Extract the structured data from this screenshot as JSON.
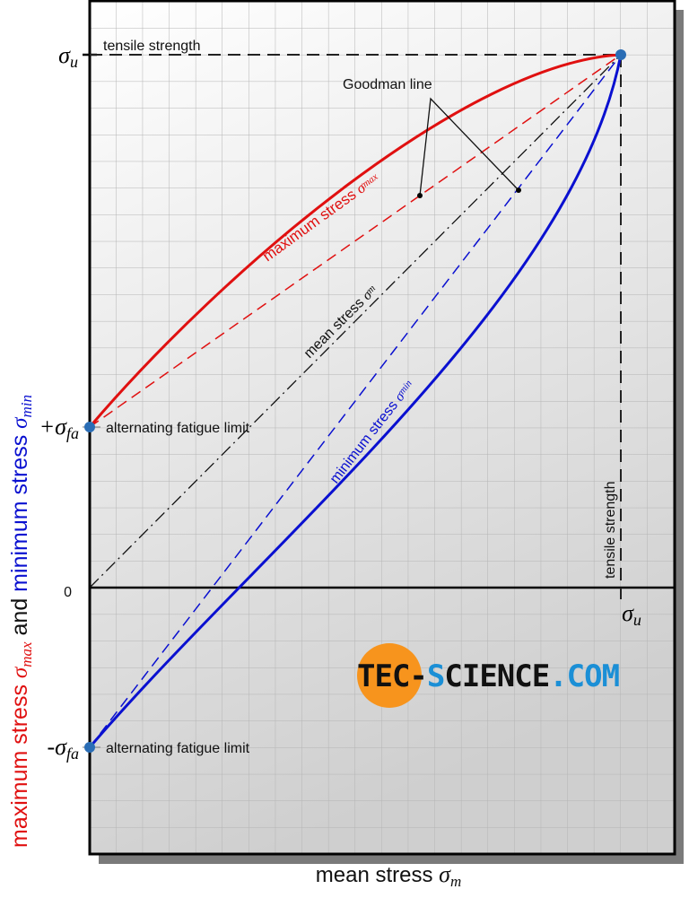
{
  "diagram": {
    "y_axis_label": {
      "part1": "maximum stress ",
      "sym1": "σ",
      "sub1": "max",
      "part2": " and ",
      "part3": "minimum stress ",
      "sym2": "σ",
      "sub2": "min"
    },
    "x_axis_label": {
      "text": "mean stress ",
      "sym": "σ",
      "sub": "m"
    },
    "y_ticks": {
      "sigma_u": {
        "sym": "σ",
        "sub": "u"
      },
      "plus_sigma_fa": {
        "sym": "+σ",
        "sub": "fa"
      },
      "zero": "0",
      "minus_sigma_fa": {
        "sym": "-σ",
        "sub": "fa"
      }
    },
    "x_ticks": {
      "sigma_u": {
        "sym": "σ",
        "sub": "u"
      }
    },
    "annotations": {
      "tensile_strength_top": "tensile strength",
      "tensile_strength_right": "tensile strength",
      "fatigue_limit_upper": "alternating fatigue limit",
      "fatigue_limit_lower": "alternating fatigue limit",
      "goodman_line": "Goodman line",
      "max_stress": {
        "text": "maximum stress ",
        "sym": "σ",
        "sub": "max"
      },
      "mean_stress": {
        "text": "mean stress ",
        "sym": "σ",
        "sub": "m"
      },
      "min_stress": {
        "text": "minimum stress ",
        "sym": "σ",
        "sub": "min"
      }
    },
    "logo": "TEC-SCIENCE.COM",
    "colors": {
      "max_stress": "#e01010",
      "min_stress": "#0a10d0",
      "mean_stress": "#111111",
      "points": "#2a6db5",
      "logo_orange": "#f7941d",
      "logo_blue": "#1b8fd6"
    }
  }
}
